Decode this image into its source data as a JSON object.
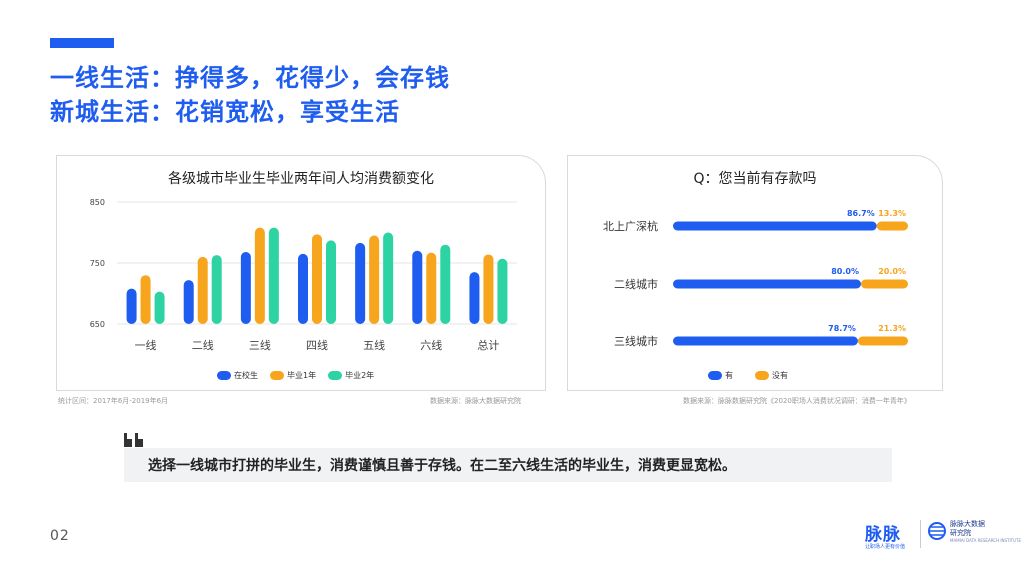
{
  "headline": {
    "line1": "一线生活：挣得多，花得少，会存钱",
    "line2": "新城生活：花销宽松，享受生活"
  },
  "chart_data": [
    {
      "type": "bar",
      "title": "各级城市毕业生毕业两年间人均消费额变化",
      "categories": [
        "一线",
        "二线",
        "三线",
        "四线",
        "五线",
        "六线",
        "总计"
      ],
      "yticks": [
        "850",
        "750",
        "650"
      ],
      "ylim": [
        650,
        850
      ],
      "series": [
        {
          "name": "在校生",
          "color": "#1f5cf0",
          "values": [
            708,
            722,
            768,
            765,
            783,
            770,
            735
          ]
        },
        {
          "name": "毕业1年",
          "color": "#f7a51c",
          "values": [
            730,
            760,
            808,
            797,
            795,
            767,
            764
          ]
        },
        {
          "name": "毕业2年",
          "color": "#2ed3a4",
          "values": [
            703,
            763,
            808,
            787,
            800,
            780,
            757
          ]
        }
      ],
      "grid": true,
      "legend": "bottom",
      "source_left": "统计区间：2017年6月-2019年6月",
      "source_right": "数据来源：脉脉大数据研究院"
    },
    {
      "type": "bar",
      "orientation": "horizontal",
      "stacked": true,
      "title": "Q：您当前有存款吗",
      "categories": [
        "北上广深杭",
        "二线城市",
        "三线城市"
      ],
      "series": [
        {
          "name": "有",
          "color": "#1f5cf0",
          "values": [
            86.7,
            80.0,
            78.7
          ],
          "labels": [
            "86.7%",
            "80.0%",
            "78.7%"
          ]
        },
        {
          "name": "没有",
          "color": "#f7a51c",
          "values": [
            13.3,
            20.0,
            21.3
          ],
          "labels": [
            "13.3%",
            "20.0%",
            "21.3%"
          ]
        }
      ],
      "xlim": [
        0,
        100
      ],
      "legend": "bottom",
      "source": "数据来源：脉脉数据研究院《2020职场人消费状况调研：消费一年青年》"
    }
  ],
  "quote": "选择一线城市打拼的毕业生，消费谨慎且善于存钱。在二至六线生活的毕业生，消费更显宽松。",
  "page_number": "02",
  "logo": {
    "maimai": "脉脉",
    "maimai_sub": "让职场人更有价值",
    "institute_line1": "脉脉大数据",
    "institute_line2": "研究院",
    "institute_en": "MAIMAI DATA RESEARCH INSTITUTE"
  },
  "colors": {
    "accent": "#1f5cf0",
    "orange": "#f7a51c",
    "teal": "#2ed3a4"
  }
}
